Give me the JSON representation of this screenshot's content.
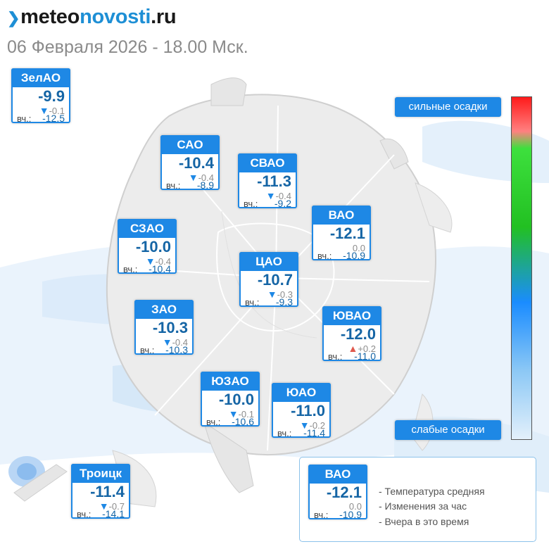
{
  "logo": {
    "part1": "meteo",
    "part2": "novosti",
    "part3": ".ru"
  },
  "date": "06 Февраля 2026 - 18.00 Мск.",
  "yesterday_label": "вч.:",
  "scale": {
    "top": "сильные осадки",
    "bottom": "слабые осадки"
  },
  "colors": {
    "accent": "#1e88e5",
    "temp": "#1565a5",
    "up": "#e05a4e",
    "down": "#1e88e5"
  },
  "districts": [
    {
      "id": "zelao",
      "name": "ЗелАО",
      "temp": "-9.9",
      "arrow": "▼",
      "change": "-0.1",
      "yesterday": "-12.5"
    },
    {
      "id": "sao",
      "name": "САО",
      "temp": "-10.4",
      "arrow": "▼",
      "change": "-0.4",
      "yesterday": "-8.9"
    },
    {
      "id": "svao",
      "name": "СВАО",
      "temp": "-11.3",
      "arrow": "▼",
      "change": "-0.4",
      "yesterday": "-9.2"
    },
    {
      "id": "szao",
      "name": "СЗАО",
      "temp": "-10.0",
      "arrow": "▼",
      "change": "-0.4",
      "yesterday": "-10.4"
    },
    {
      "id": "vao",
      "name": "ВАО",
      "temp": "-12.1",
      "arrow": "",
      "change": "0.0",
      "yesterday": "-10.9"
    },
    {
      "id": "cao",
      "name": "ЦАО",
      "temp": "-10.7",
      "arrow": "▼",
      "change": "-0.3",
      "yesterday": "-9.3"
    },
    {
      "id": "zao",
      "name": "ЗАО",
      "temp": "-10.3",
      "arrow": "▼",
      "change": "-0.4",
      "yesterday": "-10.3"
    },
    {
      "id": "yuvao",
      "name": "ЮВАО",
      "temp": "-12.0",
      "arrow": "▲",
      "change": "+0.2",
      "yesterday": "-11.0"
    },
    {
      "id": "yuzao",
      "name": "ЮЗАО",
      "temp": "-10.0",
      "arrow": "▼",
      "change": "-0.1",
      "yesterday": "-10.6"
    },
    {
      "id": "yuao",
      "name": "ЮАО",
      "temp": "-11.0",
      "arrow": "▼",
      "change": "-0.2",
      "yesterday": "-11.4"
    },
    {
      "id": "troitsk",
      "name": "Троицк",
      "temp": "-11.4",
      "arrow": "▼",
      "change": "-0.7",
      "yesterday": "-14.1"
    }
  ],
  "legend": {
    "name": "ВАО",
    "temp": "-12.1",
    "change": "0.0",
    "yesterday": "-10.9",
    "line1": "- Температура средняя",
    "line2": "- Изменения за час",
    "line3": "- Вчера в это время"
  }
}
